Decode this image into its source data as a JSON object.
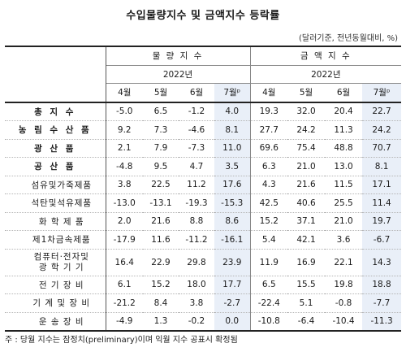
{
  "title": "수입물량지수 및 금액지수 등락률",
  "unit": "(달러기준, 전년동월대비, %)",
  "header": {
    "volume_label": "물 량 지 수",
    "value_label": "금 액 지 수",
    "year": "2022년",
    "months": [
      "4월",
      "5월",
      "6월",
      "7월ᵖ"
    ]
  },
  "rows": [
    {
      "label": "총 지 수",
      "volume": [
        "-5.0",
        "6.5",
        "-1.2",
        "4.0"
      ],
      "value": [
        "19.3",
        "32.0",
        "20.4",
        "22.7"
      ]
    },
    {
      "label": "농 림 수 산 품",
      "volume": [
        "9.2",
        "7.3",
        "-4.6",
        "8.1"
      ],
      "value": [
        "27.7",
        "24.2",
        "11.3",
        "24.2"
      ]
    },
    {
      "label": "광 산 품",
      "volume": [
        "2.1",
        "7.9",
        "-7.3",
        "11.0"
      ],
      "value": [
        "69.6",
        "75.4",
        "48.8",
        "70.7"
      ]
    },
    {
      "label": "공 산 품",
      "volume": [
        "-4.8",
        "9.5",
        "4.7",
        "3.5"
      ],
      "value": [
        "6.3",
        "21.0",
        "13.0",
        "8.1"
      ]
    },
    {
      "label": "섬유및가죽제품",
      "volume": [
        "3.8",
        "22.5",
        "11.2",
        "17.6"
      ],
      "value": [
        "4.3",
        "21.6",
        "11.5",
        "17.1"
      ]
    },
    {
      "label": "석탄및석유제품",
      "volume": [
        "-13.0",
        "-13.1",
        "-19.3",
        "-15.3"
      ],
      "value": [
        "42.5",
        "40.6",
        "25.5",
        "11.4"
      ]
    },
    {
      "label": "화 학 제 품",
      "volume": [
        "2.0",
        "21.6",
        "8.8",
        "8.6"
      ],
      "value": [
        "15.2",
        "37.1",
        "21.0",
        "19.7"
      ]
    },
    {
      "label": "제1차금속제품",
      "volume": [
        "-17.9",
        "11.6",
        "-11.2",
        "-16.1"
      ],
      "value": [
        "5.4",
        "42.1",
        "3.6",
        "-6.7"
      ]
    },
    {
      "label": "컴퓨터·전자및",
      "label2": "광 학 기 기",
      "volume": [
        "16.4",
        "22.9",
        "29.8",
        "23.9"
      ],
      "value": [
        "11.9",
        "16.9",
        "22.1",
        "14.3"
      ]
    },
    {
      "label": "전 기 장 비",
      "volume": [
        "6.1",
        "15.2",
        "18.0",
        "17.7"
      ],
      "value": [
        "6.5",
        "15.5",
        "19.8",
        "18.8"
      ]
    },
    {
      "label": "기 계 및 장 비",
      "volume": [
        "-21.2",
        "8.4",
        "3.8",
        "-2.7"
      ],
      "value": [
        "-22.4",
        "5.1",
        "-0.8",
        "-7.7"
      ]
    },
    {
      "label": "운 송 장 비",
      "volume": [
        "-4.9",
        "1.3",
        "-0.2",
        "0.0"
      ],
      "value": [
        "-10.8",
        "-6.4",
        "-10.4",
        "-11.3"
      ]
    }
  ],
  "note": "주 : 당월 지수는 잠정치(preliminary)이며 익월 지수 공표시 확정됨"
}
